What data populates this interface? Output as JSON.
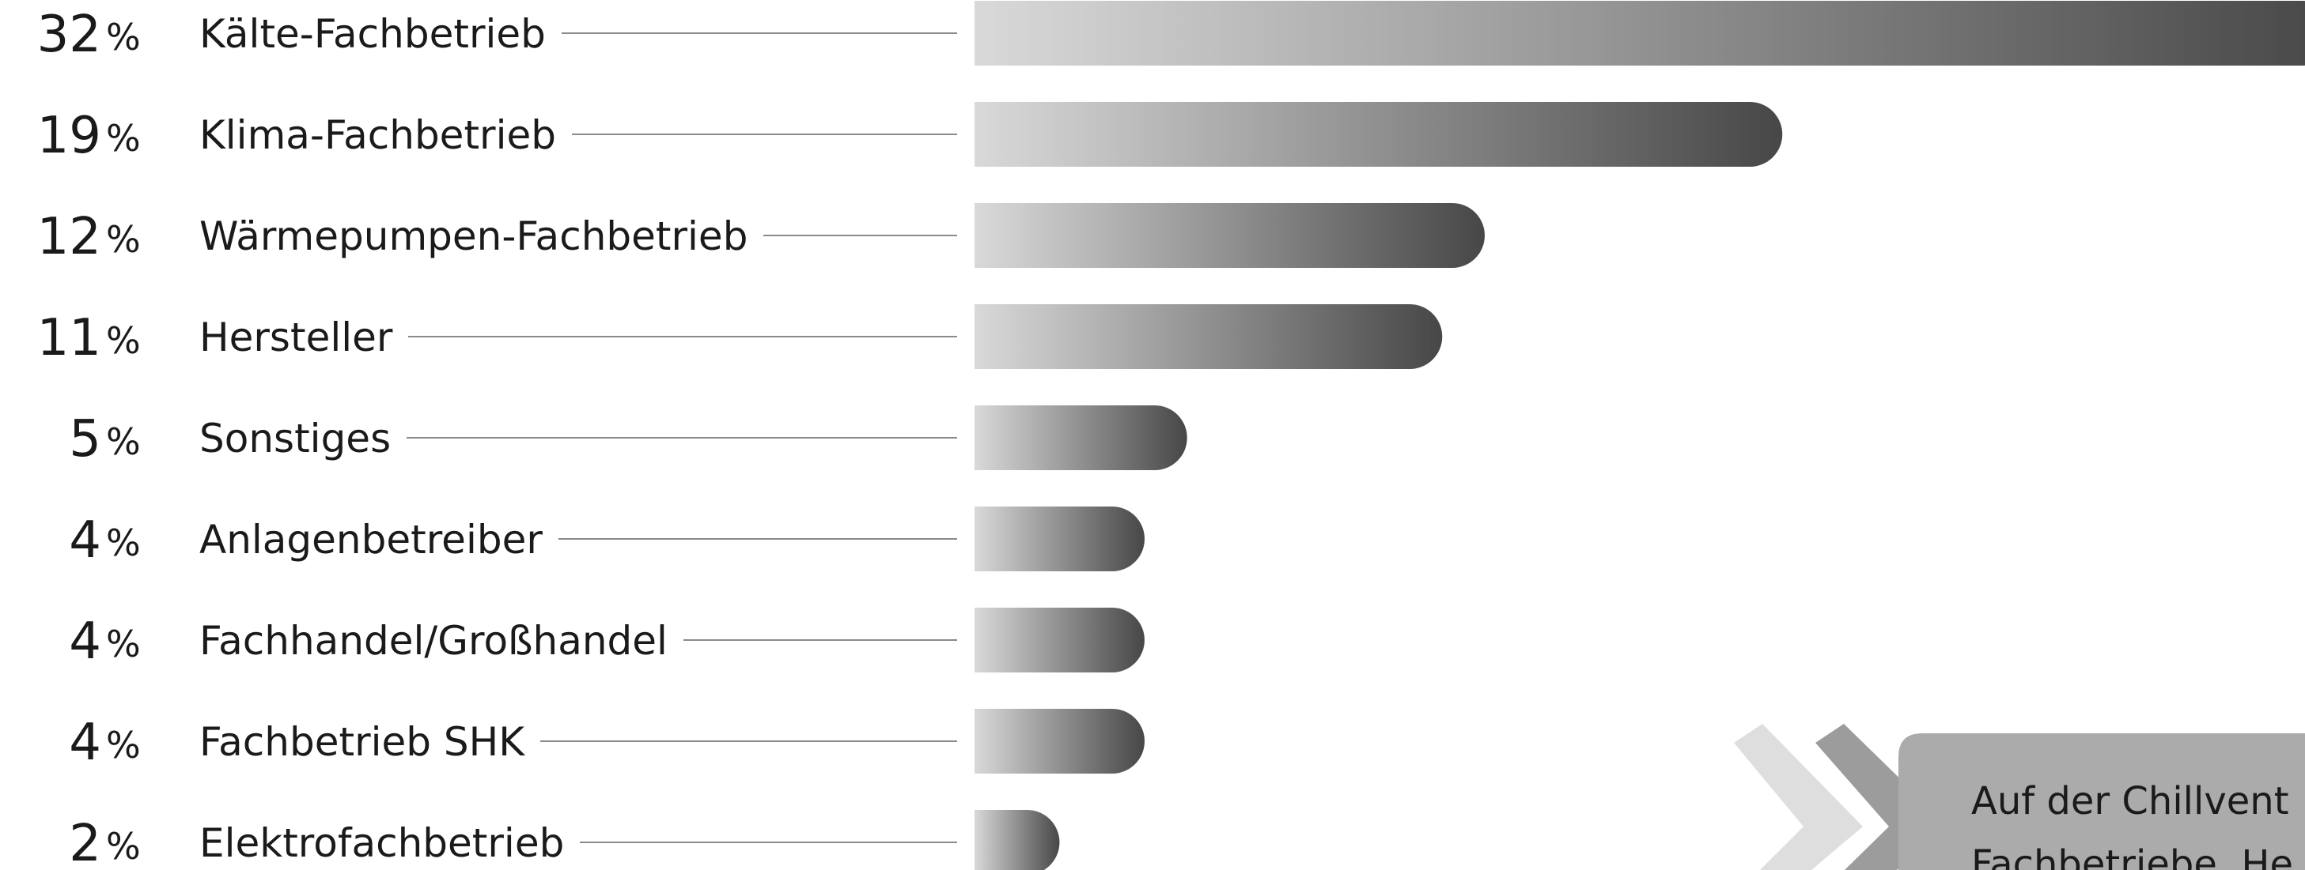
{
  "chart_data": {
    "type": "bar",
    "orientation": "horizontal",
    "categories": [
      "Kälte-Fachbetrieb",
      "Klima-Fachbetrieb",
      "Wärmepumpen-Fachbetrieb",
      "Hersteller",
      "Sonstiges",
      "Anlagenbetreiber",
      "Fachhandel/Großhandel",
      "Fachbetrieb SHK",
      "Elektrofachbetrieb"
    ],
    "values": [
      32,
      19,
      12,
      11,
      5,
      4,
      4,
      4,
      2
    ],
    "value_labels": [
      "32",
      "19",
      "12",
      "11",
      "5",
      "4",
      "4",
      "4",
      "2"
    ],
    "unit": "%",
    "bar_gradient": {
      "start": "#d9d9d9",
      "end": "#474747"
    },
    "leader_color": "#8a8a8a"
  },
  "callout": {
    "line1": "Auf der Chillvent",
    "line2": "Fachbetriebe, He",
    "panel_color": "#ababab",
    "chevron_light_color": "#dedede",
    "chevron_dark_color": "#9c9c9c"
  }
}
